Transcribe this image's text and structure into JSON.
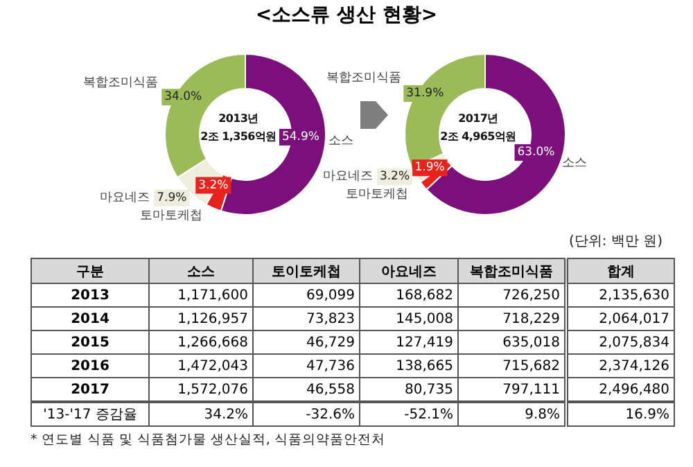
{
  "chart_data": [
    {
      "type": "donut",
      "title": "<소스류 생산 현황>",
      "categories": [
        "소스",
        "토마토케첩",
        "마요네즈",
        "복합조미식품"
      ],
      "values": [
        54.9,
        3.2,
        7.9,
        34.0
      ],
      "value_labels": [
        "54.9%",
        "3.2%",
        "7.9%",
        "34.0%"
      ],
      "colors": [
        "#7b0f7b",
        "#e8231e",
        "#eeeede",
        "#9bbb59"
      ],
      "annotations": [
        "2013년",
        "2조 1,356억원"
      ]
    },
    {
      "type": "donut",
      "categories": [
        "소스",
        "토마토케첩",
        "마요네즈",
        "복합조미식품"
      ],
      "values": [
        63.0,
        1.9,
        3.2,
        31.9
      ],
      "value_labels": [
        "63.0%",
        "1.9%",
        "3.2%",
        "31.9%"
      ],
      "colors": [
        "#7b0f7b",
        "#e8231e",
        "#eeeede",
        "#9bbb59"
      ],
      "annotations": [
        "2017년",
        "2조 4,965억원"
      ]
    },
    {
      "type": "heatmap",
      "ylabel": "구분",
      "categories": [
        "소스",
        "토이토케첩",
        "아요네즈",
        "복합조미식품",
        "합계"
      ],
      "y_categories": [
        "2013",
        "2014",
        "2015",
        "2016",
        "2017",
        "'13-'17 증감율"
      ],
      "cells": [
        [
          1171600,
          69099,
          168682,
          726250,
          2135630
        ],
        [
          1126957,
          73823,
          145008,
          718229,
          2064017
        ],
        [
          1266668,
          46729,
          127419,
          635018,
          2075834
        ],
        [
          1472043,
          47736,
          138665,
          715682,
          2374126
        ],
        [
          1572076,
          46558,
          80735,
          797111,
          2496480
        ],
        [
          34.2,
          -32.6,
          -52.1,
          9.8,
          16.9
        ]
      ],
      "cell_labels": [
        [
          "1,171,600",
          "69,099",
          "168,682",
          "726,250",
          "2,135,630"
        ],
        [
          "1,126,957",
          "73,823",
          "145,008",
          "718,229",
          "2,064,017"
        ],
        [
          "1,266,668",
          "46,729",
          "127,419",
          "635,018",
          "2,075,834"
        ],
        [
          "1,472,043",
          "47,736",
          "138,665",
          "715,682",
          "2,374,126"
        ],
        [
          "1,572,076",
          "46,558",
          "80,735",
          "797,111",
          "2,496,480"
        ],
        [
          "34.2%",
          "-32.6%",
          "-52.1%",
          "9.8%",
          "16.9%"
        ]
      ],
      "annotations": [
        "(단위: 백만 원)",
        "* 연도별 식품 및 식품첨가물 생산실적, 식품의약품안전처"
      ]
    }
  ]
}
